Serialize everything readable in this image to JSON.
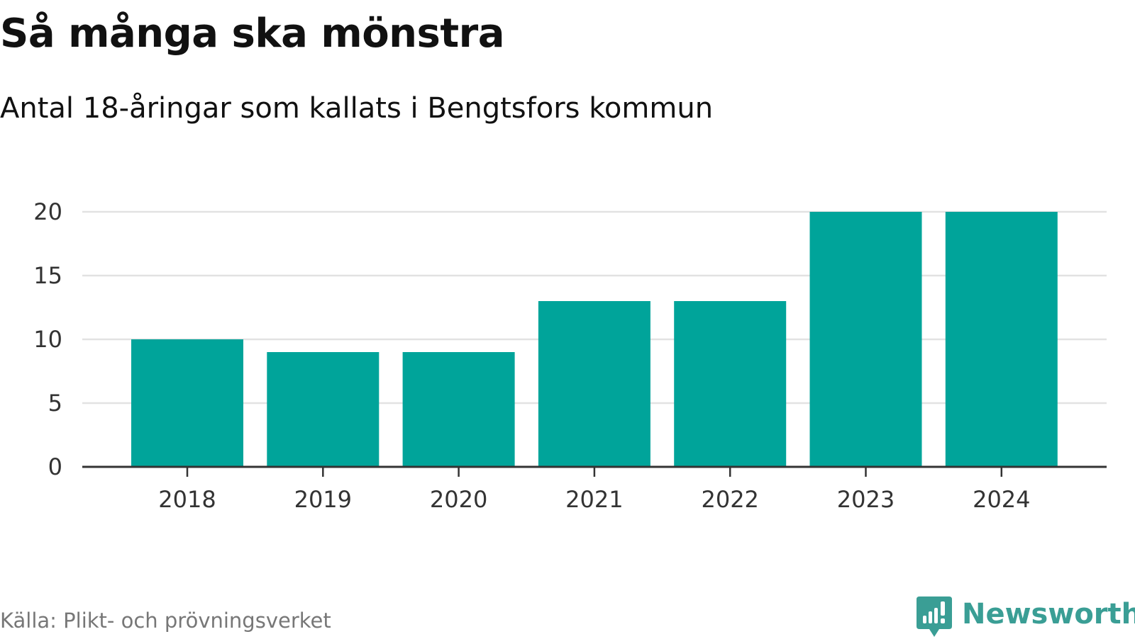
{
  "header": {
    "title": "Så många ska mönstra",
    "subtitle": "Antal 18-åringar som kallats i Bengtsfors kommun"
  },
  "footer": {
    "source": "Källa: Plikt- och prövningsverket",
    "brand": "Newsworthy"
  },
  "colors": {
    "bar": "#00a49a",
    "grid": "#e2e2e2",
    "axis": "#333333",
    "brand": "#3a9e95"
  },
  "chart_data": {
    "type": "bar",
    "title": "Så många ska mönstra",
    "subtitle": "Antal 18-åringar som kallats i Bengtsfors kommun",
    "xlabel": "",
    "ylabel": "",
    "categories": [
      "2018",
      "2019",
      "2020",
      "2021",
      "2022",
      "2023",
      "2024"
    ],
    "values": [
      10,
      9,
      9,
      13,
      13,
      20,
      20
    ],
    "ylim": [
      0,
      20
    ],
    "yticks": [
      0,
      5,
      10,
      15,
      20
    ],
    "grid": true,
    "legend": "none"
  }
}
